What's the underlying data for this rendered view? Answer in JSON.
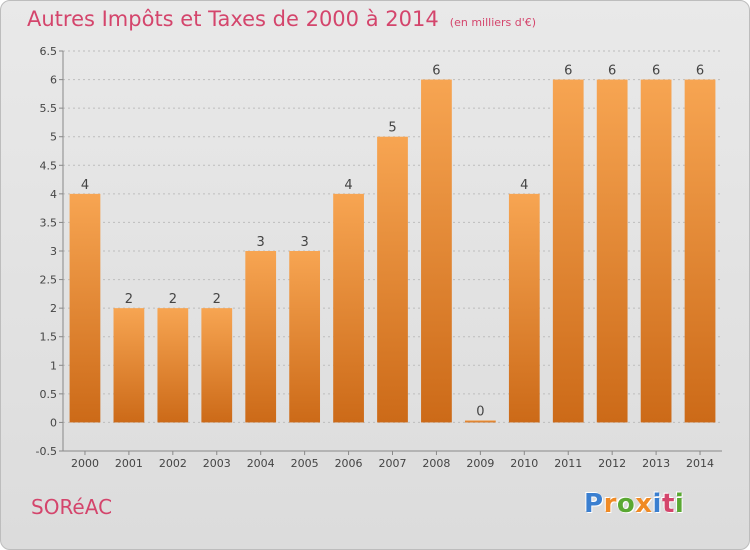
{
  "header": {
    "title": "Autres Impôts et Taxes de 2000 à 2014",
    "unit": "(en milliers d'€)"
  },
  "footer": {
    "place": "SORéAC",
    "logo": [
      "P",
      "r",
      "o",
      "x",
      "i",
      "t",
      "i"
    ],
    "logo_colors": [
      "#3a7fd0",
      "#f08a24",
      "#5aa832",
      "#f08a24",
      "#3a7fd0",
      "#d4456c",
      "#5aa832"
    ]
  },
  "colors": {
    "title": "#d4456c",
    "bar_top": "#f7a552",
    "bar_bottom": "#cc6a18",
    "grid": "#bdbdbd"
  },
  "chart_data": {
    "type": "bar",
    "title": "Autres Impôts et Taxes de 2000 à 2014",
    "subtitle": "(en milliers d'€)",
    "categories": [
      "2000",
      "2001",
      "2002",
      "2003",
      "2004",
      "2005",
      "2006",
      "2007",
      "2008",
      "2009",
      "2010",
      "2011",
      "2012",
      "2013",
      "2014"
    ],
    "values": [
      4,
      2,
      2,
      2,
      3,
      3,
      4,
      5,
      6,
      0,
      4,
      6,
      6,
      6,
      6
    ],
    "data_labels": [
      "4",
      "2",
      "2",
      "2",
      "3",
      "3",
      "4",
      "5",
      "6",
      "0",
      "4",
      "6",
      "6",
      "6",
      "6"
    ],
    "yticks": [
      "6.5",
      "6",
      "5.5",
      "5",
      "4.5",
      "4",
      "3.5",
      "3",
      "2.5",
      "2",
      "1.5",
      "1",
      "0.5",
      "0",
      "-0.5"
    ],
    "ylim": [
      -0.5,
      6.5
    ],
    "grid": true
  }
}
